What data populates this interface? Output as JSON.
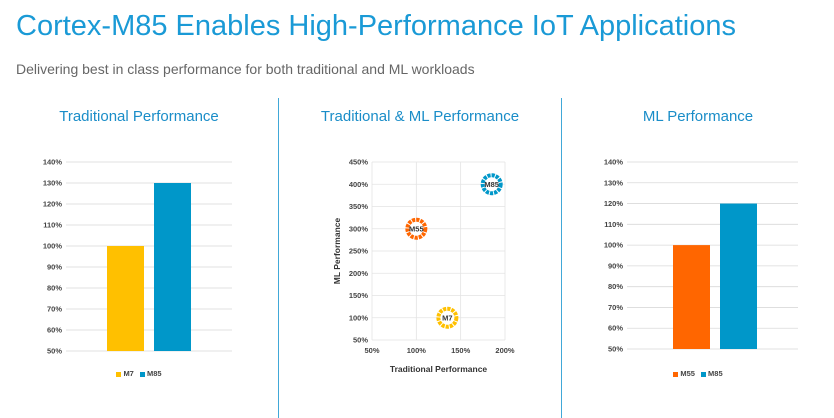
{
  "header": {
    "title": "Cortex-M85 Enables High-Performance IoT Applications",
    "subtitle": "Delivering best in class performance for both traditional and ML workloads"
  },
  "chart_data": [
    {
      "type": "bar",
      "title": "Traditional Performance",
      "categories": [
        "M7",
        "M85"
      ],
      "values": [
        100,
        130
      ],
      "colors": [
        "#ffc000",
        "#0097c9"
      ],
      "ylim": [
        50,
        140
      ],
      "yticks": [
        "50%",
        "60%",
        "70%",
        "80%",
        "90%",
        "100%",
        "110%",
        "120%",
        "130%",
        "140%"
      ],
      "grid": true,
      "legend": "bottom",
      "xlabel": "",
      "ylabel": ""
    },
    {
      "type": "scatter",
      "title": "Traditional & ML Performance",
      "xlabel": "Traditional Performance",
      "ylabel": "ML Performance",
      "xlim": [
        50,
        200
      ],
      "ylim": [
        50,
        450
      ],
      "xticks": [
        "50%",
        "100%",
        "150%",
        "200%"
      ],
      "yticks": [
        "50%",
        "100%",
        "150%",
        "200%",
        "250%",
        "300%",
        "350%",
        "400%",
        "450%"
      ],
      "points": [
        {
          "label": "M55",
          "x": 100,
          "y": 300,
          "color": "#ff6600"
        },
        {
          "label": "M7",
          "x": 135,
          "y": 100,
          "color": "#ffc000"
        },
        {
          "label": "M85",
          "x": 185,
          "y": 400,
          "color": "#0097c9"
        }
      ],
      "grid": true
    },
    {
      "type": "bar",
      "title": "ML Performance",
      "categories": [
        "M55",
        "M85"
      ],
      "values": [
        100,
        120
      ],
      "colors": [
        "#ff6600",
        "#0097c9"
      ],
      "ylim": [
        50,
        140
      ],
      "yticks": [
        "50%",
        "60%",
        "70%",
        "80%",
        "90%",
        "100%",
        "110%",
        "120%",
        "130%",
        "140%"
      ],
      "grid": true,
      "legend": "bottom",
      "xlabel": "",
      "ylabel": ""
    }
  ]
}
